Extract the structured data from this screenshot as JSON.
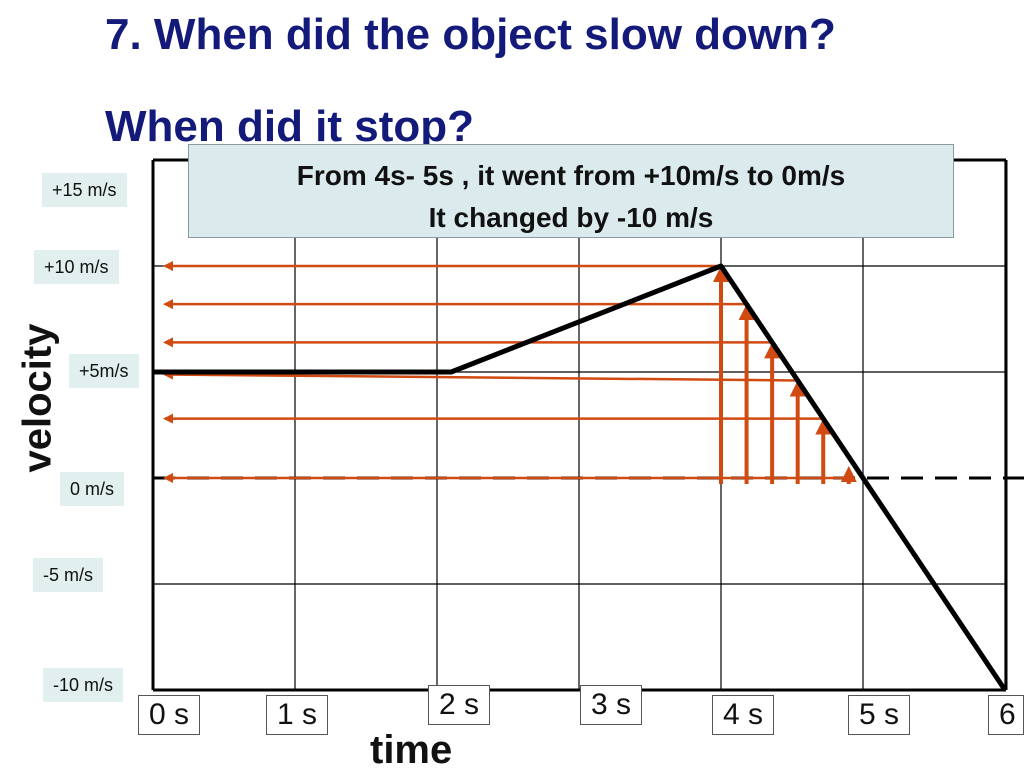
{
  "title": {
    "line1": "7. When did the object slow down?",
    "line2": "When did it stop?"
  },
  "callout": {
    "line1": "From 4s- 5s , it went from +10m/s to 0m/s",
    "line2": "It changed by -10 m/s"
  },
  "chart_data": {
    "type": "line",
    "xlabel": "time",
    "ylabel": "velocity",
    "xlim": [
      0,
      6
    ],
    "ylim": [
      -10,
      15
    ],
    "grid": true,
    "y_tick_labels": [
      {
        "value": 15,
        "label": "+15 m/s"
      },
      {
        "value": 10,
        "label": "+10 m/s"
      },
      {
        "value": 5,
        "label": "+5m/s"
      },
      {
        "value": 0,
        "label": "0 m/s"
      },
      {
        "value": -5,
        "label": "-5 m/s"
      },
      {
        "value": -10,
        "label": "-10 m/s"
      }
    ],
    "x_tick_labels": [
      {
        "value": 0,
        "label": "0 s"
      },
      {
        "value": 1,
        "label": "1 s"
      },
      {
        "value": 2,
        "label": "2 s"
      },
      {
        "value": 3,
        "label": "3 s"
      },
      {
        "value": 4,
        "label": "4 s"
      },
      {
        "value": 5,
        "label": "5 s"
      },
      {
        "value": 6,
        "label": "6"
      }
    ],
    "series": [
      {
        "x": [
          0,
          2.1,
          4,
          6
        ],
        "y": [
          5,
          5,
          10,
          -10
        ],
        "color": "#000000"
      }
    ],
    "zero_line": {
      "style": "dashed",
      "color": "#000000"
    },
    "annotation_arrows": {
      "color": "#d04a12",
      "x_values": [
        4,
        4.18,
        4.36,
        4.54,
        4.72,
        4.9
      ],
      "y_values": [
        10,
        8.2,
        6.4,
        4.6,
        2.8,
        0
      ]
    }
  }
}
